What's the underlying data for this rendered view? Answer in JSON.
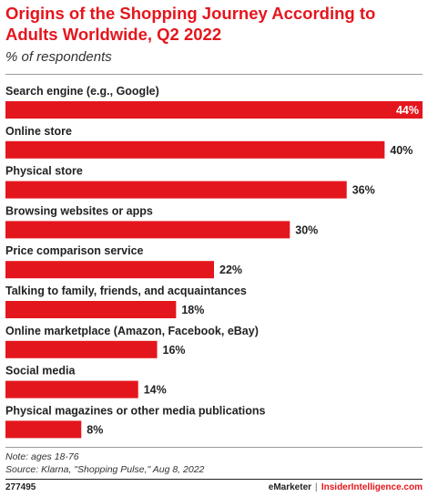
{
  "header": {
    "title": "Origins of the Shopping Journey According to Adults Worldwide, Q2 2022",
    "subtitle": "% of respondents"
  },
  "colors": {
    "accent": "#e4161d",
    "bar": "#e4161d"
  },
  "chart_data": {
    "type": "bar",
    "orientation": "horizontal",
    "title": "Origins of the Shopping Journey According to Adults Worldwide, Q2 2022",
    "subtitle": "% of respondents",
    "categories": [
      "Search engine (e.g., Google)",
      "Online store",
      "Physical store",
      "Browsing websites or apps",
      "Price comparison service",
      "Talking to family, friends, and acquaintances",
      "Online marketplace (Amazon, Facebook, eBay)",
      "Social media",
      "Physical magazines or other media publications"
    ],
    "values": [
      44,
      40,
      36,
      30,
      22,
      18,
      16,
      14,
      8
    ],
    "value_labels": [
      "44%",
      "40%",
      "36%",
      "30%",
      "22%",
      "18%",
      "16%",
      "14%",
      "8%"
    ],
    "xlim": [
      0,
      44
    ],
    "grid": false,
    "legend": "none"
  },
  "footer": {
    "note": "Note: ages 18-76",
    "source": "Source: Klarna, \"Shopping Pulse,\" Aug 8, 2022",
    "chart_id": "277495",
    "brand_left": "eMarketer",
    "brand_sep": "|",
    "brand_right": "InsiderIntelligence.com"
  }
}
